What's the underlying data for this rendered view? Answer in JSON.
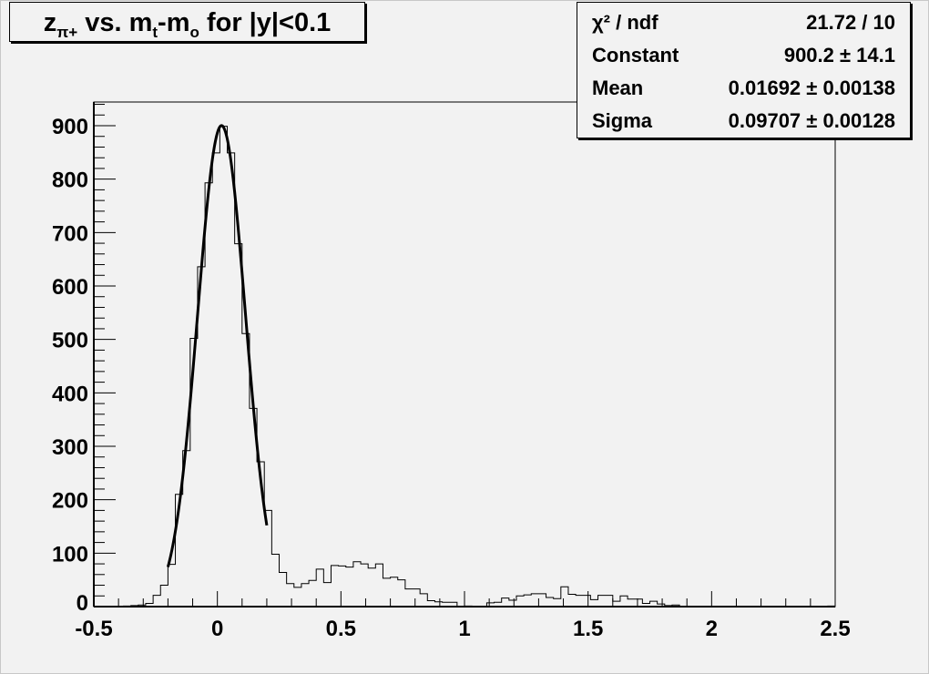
{
  "title": {
    "parts": [
      {
        "text": "z",
        "sub": false
      },
      {
        "text": "π+",
        "sub": true
      },
      {
        "text": " vs. m",
        "sub": false
      },
      {
        "text": "t",
        "sub": true
      },
      {
        "text": "-m",
        "sub": false
      },
      {
        "text": "o",
        "sub": true
      },
      {
        "text": " for |y|<0.1",
        "sub": false
      }
    ]
  },
  "stats": [
    {
      "label": "χ² / ndf",
      "value": "21.72 / 10"
    },
    {
      "label": "Constant",
      "value": "900.2 ± 14.1"
    },
    {
      "label": "Mean",
      "value": "0.01692 ± 0.00138"
    },
    {
      "label": "Sigma",
      "value": "0.09707 ± 0.00128"
    }
  ],
  "chart_data": {
    "type": "histogram",
    "title": "z_{π+} vs. m_t-m_o for |y|<0.1",
    "xlabel": "",
    "ylabel": "",
    "xlim": [
      -0.5,
      2.5
    ],
    "ylim": [
      0,
      940
    ],
    "bin_edges_range": [
      -0.5,
      2.5
    ],
    "n_bins": 100,
    "values": [
      0,
      0,
      0,
      0,
      1,
      2,
      3,
      6,
      21,
      40,
      79,
      210,
      292,
      502,
      636,
      793,
      849,
      899,
      849,
      679,
      511,
      371,
      271,
      180,
      98,
      64,
      43,
      36,
      43,
      49,
      70,
      45,
      77,
      76,
      74,
      84,
      80,
      72,
      80,
      53,
      55,
      50,
      33,
      33,
      24,
      11,
      9,
      8,
      8,
      0,
      1,
      0,
      0,
      7,
      8,
      16,
      12,
      20,
      22,
      24,
      24,
      17,
      15,
      37,
      23,
      21,
      21,
      13,
      21,
      21,
      10,
      20,
      14,
      14,
      6,
      10,
      5,
      2,
      3,
      0,
      0,
      0,
      0,
      0,
      0,
      0,
      0,
      0,
      0,
      0,
      0,
      0,
      0,
      0,
      0,
      0,
      0,
      0,
      0,
      1
    ],
    "x_ticks": [
      "-0.5",
      "0",
      "0.5",
      "1",
      "1.5",
      "2",
      "2.5"
    ],
    "x_tick_values": [
      -0.5,
      0,
      0.5,
      1,
      1.5,
      2,
      2.5
    ],
    "y_ticks": [
      "0",
      "100",
      "200",
      "300",
      "400",
      "500",
      "600",
      "700",
      "800",
      "900"
    ],
    "y_tick_values": [
      0,
      100,
      200,
      300,
      400,
      500,
      600,
      700,
      800,
      900
    ],
    "fit": {
      "function": "gaus",
      "constant": 900.2,
      "mean": 0.01692,
      "sigma": 0.09707,
      "range": [
        -0.2,
        0.2
      ]
    },
    "grid": false,
    "legend": "top-right stats box"
  }
}
